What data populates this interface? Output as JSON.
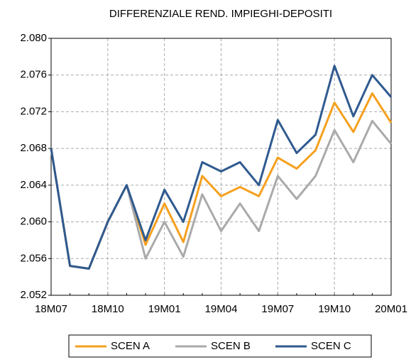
{
  "chart_data": {
    "type": "line",
    "title": "DIFFERENZIALE REND. IMPIEGHI-DEPOSITI",
    "categories": [
      "18M07",
      null,
      null,
      "18M10",
      null,
      null,
      "19M01",
      null,
      null,
      "19M04",
      null,
      null,
      "19M07",
      null,
      null,
      "19M10",
      null,
      null,
      "20M01"
    ],
    "series": [
      {
        "name": "SCEN A",
        "color": "#f5a01e",
        "values": [
          2.068,
          2.0552,
          2.0549,
          2.06,
          2.064,
          2.0575,
          2.062,
          2.0578,
          2.065,
          2.0628,
          2.0638,
          2.0628,
          2.067,
          2.0658,
          2.0678,
          2.073,
          2.0698,
          2.074,
          2.0708
        ]
      },
      {
        "name": "SCEN B",
        "color": "#aaaaaa",
        "values": [
          2.068,
          2.0552,
          2.0549,
          2.06,
          2.064,
          2.056,
          2.06,
          2.0562,
          2.063,
          2.059,
          2.062,
          2.059,
          2.065,
          2.0625,
          2.065,
          2.07,
          2.0665,
          2.071,
          2.0685
        ]
      },
      {
        "name": "SCEN C",
        "color": "#2f5a8f",
        "values": [
          2.068,
          2.0552,
          2.0549,
          2.06,
          2.064,
          2.058,
          2.0635,
          2.06,
          2.0665,
          2.0655,
          2.0665,
          2.064,
          2.0711,
          2.0675,
          2.0695,
          2.077,
          2.0715,
          2.076,
          2.0736
        ]
      }
    ],
    "ylim": [
      2.052,
      2.08
    ],
    "yticks": [
      2.052,
      2.056,
      {
        "value": 2.06,
        "label": "2.060"
      },
      2.064,
      2.068,
      2.072,
      2.076,
      {
        "value": 2.08,
        "label": "2.080"
      }
    ],
    "grid": true
  }
}
